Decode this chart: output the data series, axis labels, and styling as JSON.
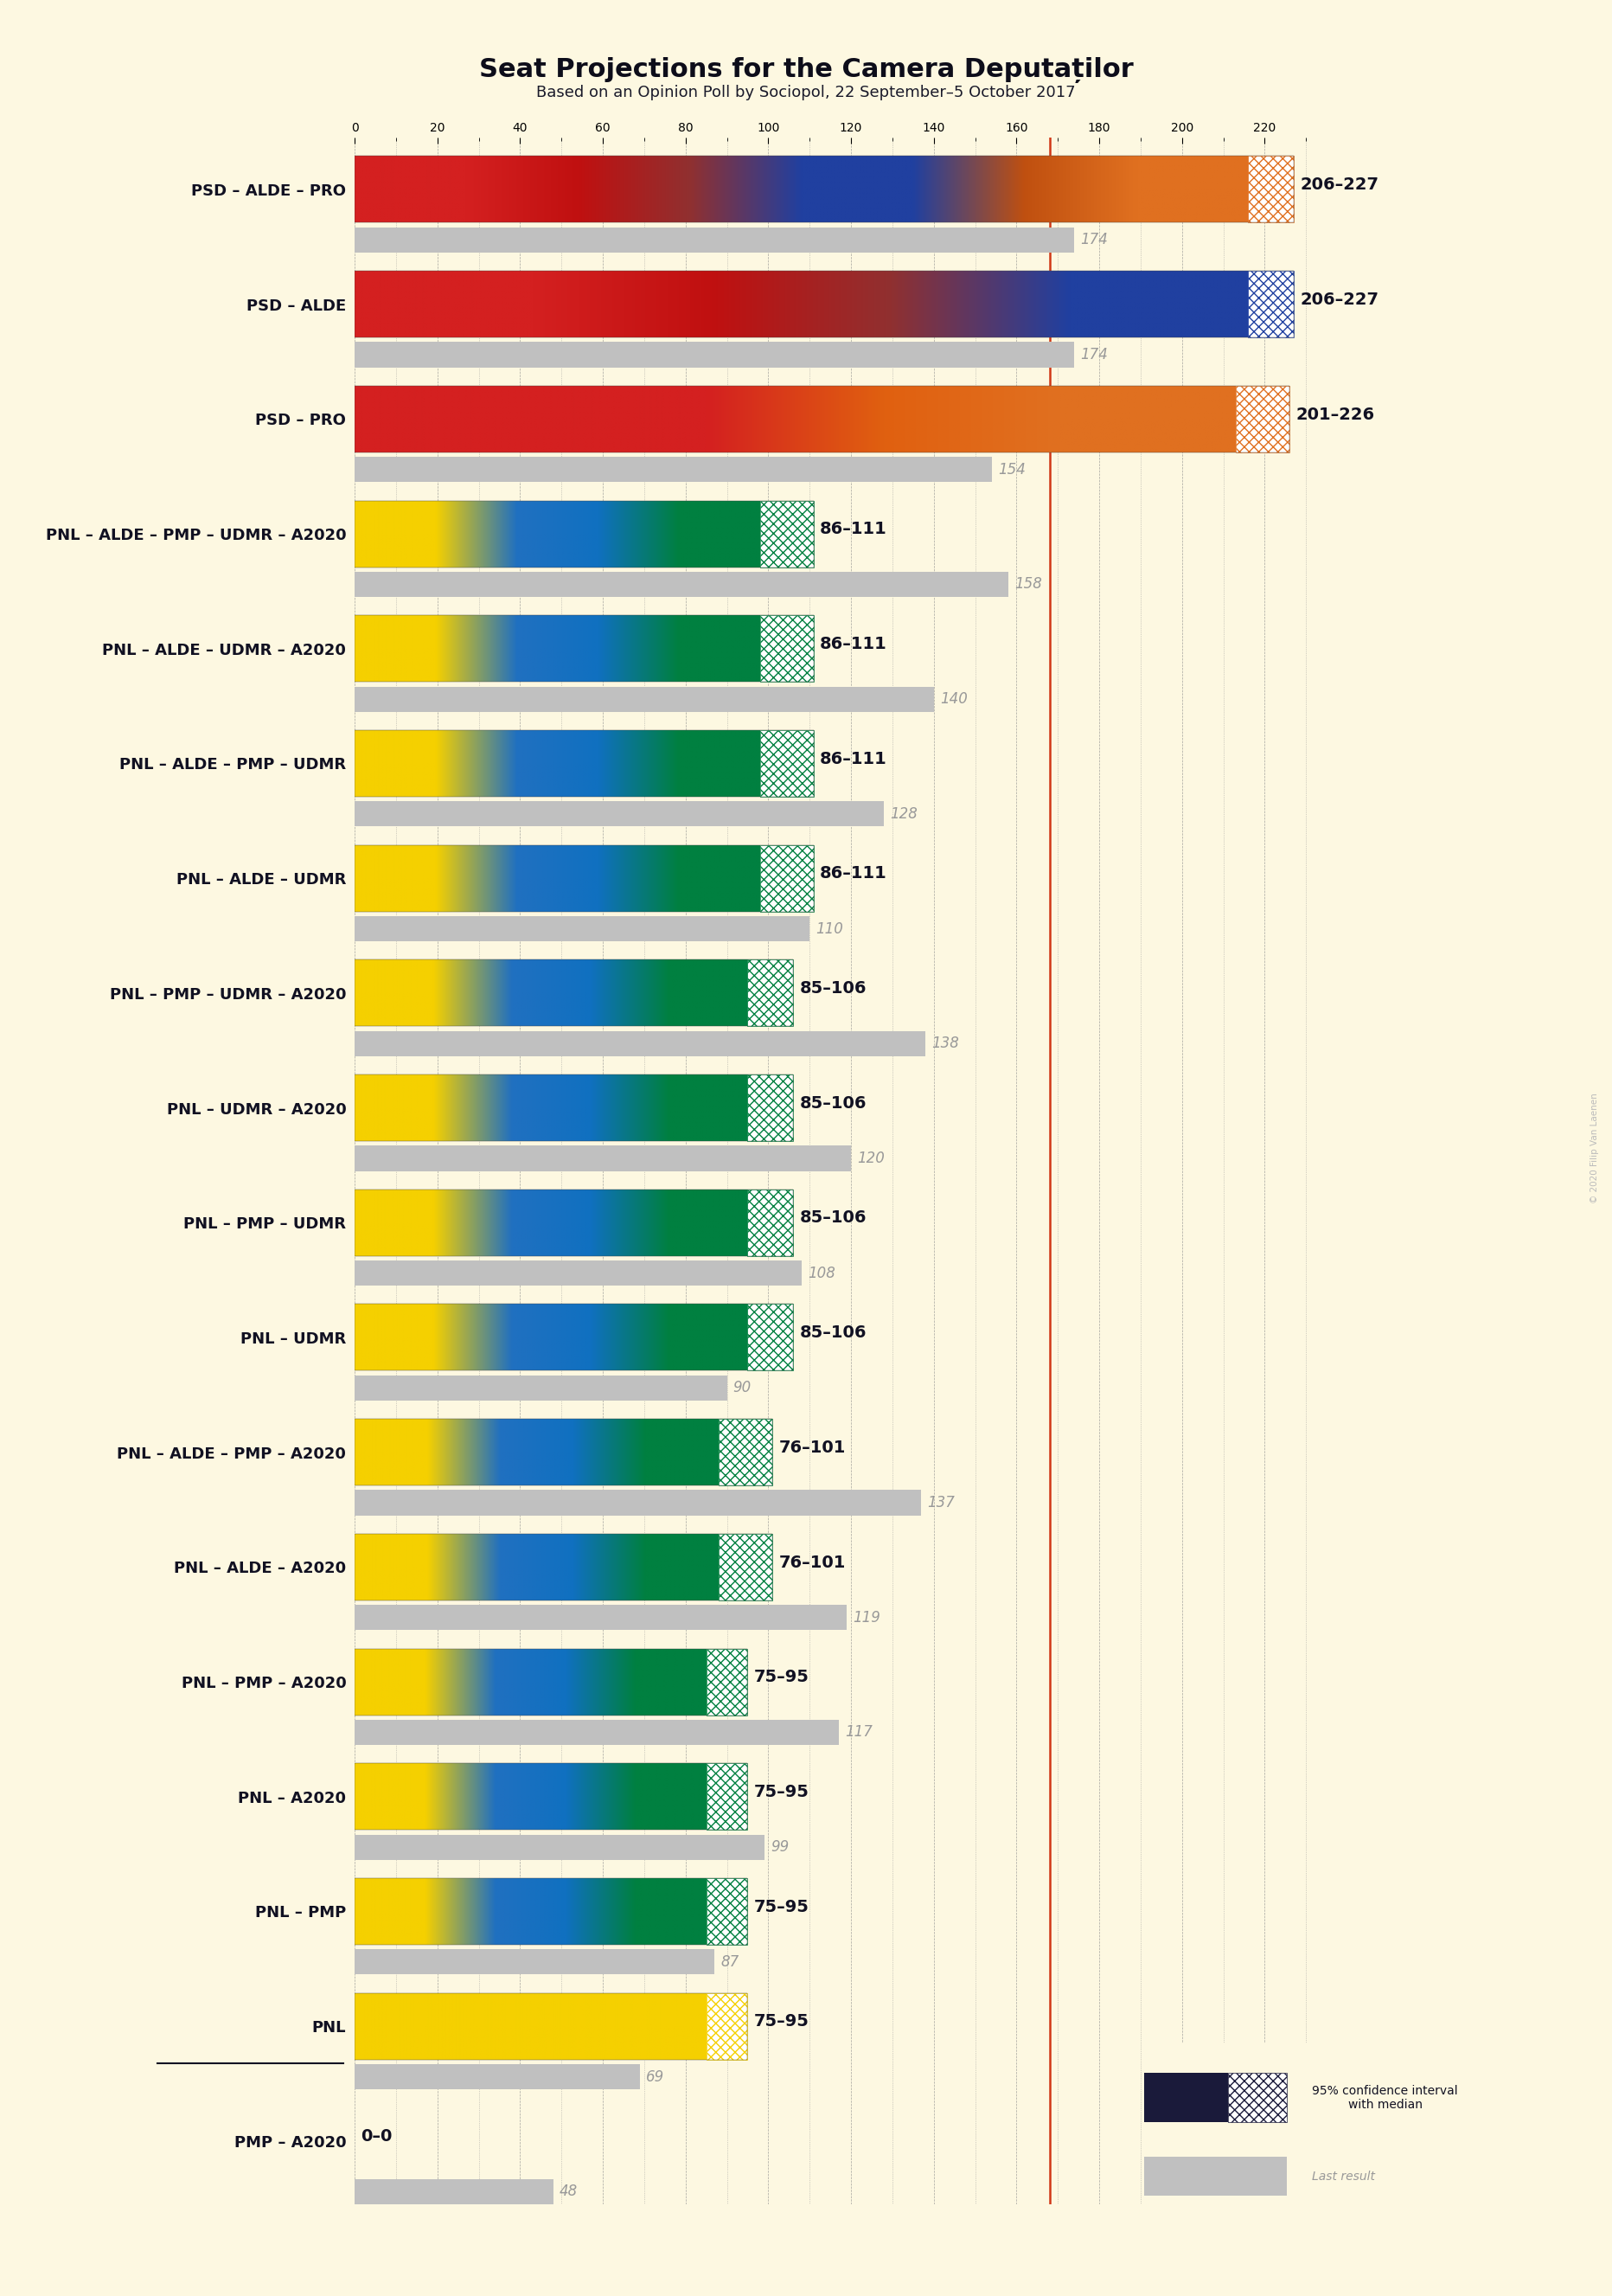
{
  "title": "Seat Projections for the Camera Deputaților",
  "subtitle": "Based on an Opinion Poll by Sociopol, 22 September–5 October 2017",
  "bg_color": "#fdf8e1",
  "watermark": "© 2020 Filip Van Laenen",
  "coalitions": [
    {
      "name": "PSD – ALDE – PRO",
      "ci_low": 206,
      "ci_high": 227,
      "median": 216,
      "last": 174,
      "type": "red_blue_orange",
      "underline": false
    },
    {
      "name": "PSD – ALDE",
      "ci_low": 206,
      "ci_high": 227,
      "median": 216,
      "last": 174,
      "type": "red_blue",
      "underline": false
    },
    {
      "name": "PSD – PRO",
      "ci_low": 201,
      "ci_high": 226,
      "median": 213,
      "last": 154,
      "type": "red_orange",
      "underline": false
    },
    {
      "name": "PNL – ALDE – PMP – UDMR – A2020",
      "ci_low": 86,
      "ci_high": 111,
      "median": 98,
      "last": 158,
      "type": "yellow_blue_green",
      "underline": false
    },
    {
      "name": "PNL – ALDE – UDMR – A2020",
      "ci_low": 86,
      "ci_high": 111,
      "median": 98,
      "last": 140,
      "type": "yellow_blue_green",
      "underline": false
    },
    {
      "name": "PNL – ALDE – PMP – UDMR",
      "ci_low": 86,
      "ci_high": 111,
      "median": 98,
      "last": 128,
      "type": "yellow_blue_green",
      "underline": false
    },
    {
      "name": "PNL – ALDE – UDMR",
      "ci_low": 86,
      "ci_high": 111,
      "median": 98,
      "last": 110,
      "type": "yellow_blue_green",
      "underline": false
    },
    {
      "name": "PNL – PMP – UDMR – A2020",
      "ci_low": 85,
      "ci_high": 106,
      "median": 95,
      "last": 138,
      "type": "yellow_blue_green",
      "underline": false
    },
    {
      "name": "PNL – UDMR – A2020",
      "ci_low": 85,
      "ci_high": 106,
      "median": 95,
      "last": 120,
      "type": "yellow_blue_green",
      "underline": false
    },
    {
      "name": "PNL – PMP – UDMR",
      "ci_low": 85,
      "ci_high": 106,
      "median": 95,
      "last": 108,
      "type": "yellow_blue_green",
      "underline": false
    },
    {
      "name": "PNL – UDMR",
      "ci_low": 85,
      "ci_high": 106,
      "median": 95,
      "last": 90,
      "type": "yellow_blue_green",
      "underline": false
    },
    {
      "name": "PNL – ALDE – PMP – A2020",
      "ci_low": 76,
      "ci_high": 101,
      "median": 88,
      "last": 137,
      "type": "yellow_blue_green",
      "underline": false
    },
    {
      "name": "PNL – ALDE – A2020",
      "ci_low": 76,
      "ci_high": 101,
      "median": 88,
      "last": 119,
      "type": "yellow_blue_green",
      "underline": false
    },
    {
      "name": "PNL – PMP – A2020",
      "ci_low": 75,
      "ci_high": 95,
      "median": 85,
      "last": 117,
      "type": "yellow_blue_green",
      "underline": false
    },
    {
      "name": "PNL – A2020",
      "ci_low": 75,
      "ci_high": 95,
      "median": 85,
      "last": 99,
      "type": "yellow_blue_green",
      "underline": false
    },
    {
      "name": "PNL – PMP",
      "ci_low": 75,
      "ci_high": 95,
      "median": 85,
      "last": 87,
      "type": "yellow_blue_green",
      "underline": false
    },
    {
      "name": "PNL",
      "ci_low": 75,
      "ci_high": 95,
      "median": 85,
      "last": 69,
      "type": "yellow",
      "underline": true
    },
    {
      "name": "PMP – A2020",
      "ci_low": 0,
      "ci_high": 0,
      "median": 0,
      "last": 48,
      "type": "none",
      "underline": false
    }
  ],
  "majority_line": 168,
  "x_max": 230,
  "color_schemes": {
    "red_blue_orange": [
      "#d42020",
      "#d42020",
      "#c01010",
      "#903030",
      "#2040a0",
      "#2040a0",
      "#c05010",
      "#e07020",
      "#e07020"
    ],
    "red_blue": [
      "#d42020",
      "#d42020",
      "#c01010",
      "#903030",
      "#2040a0",
      "#2040a0"
    ],
    "red_orange": [
      "#d42020",
      "#d42020",
      "#d42020",
      "#e06010",
      "#e07020",
      "#e07020"
    ],
    "yellow_blue_green": [
      "#f5d000",
      "#f5d000",
      "#2070c0",
      "#1070c0",
      "#008040",
      "#008040"
    ],
    "yellow": [
      "#f5d000",
      "#f5d000"
    ],
    "none": null
  },
  "hatch_colors": {
    "red_blue_orange": "#e07020",
    "red_blue": "#2040a0",
    "red_orange": "#e07020",
    "yellow_blue_green": "#008040",
    "yellow": "#f5d000",
    "none": null
  },
  "legend_text_ci": "95% confidence interval\nwith median",
  "legend_text_last": "Last result"
}
